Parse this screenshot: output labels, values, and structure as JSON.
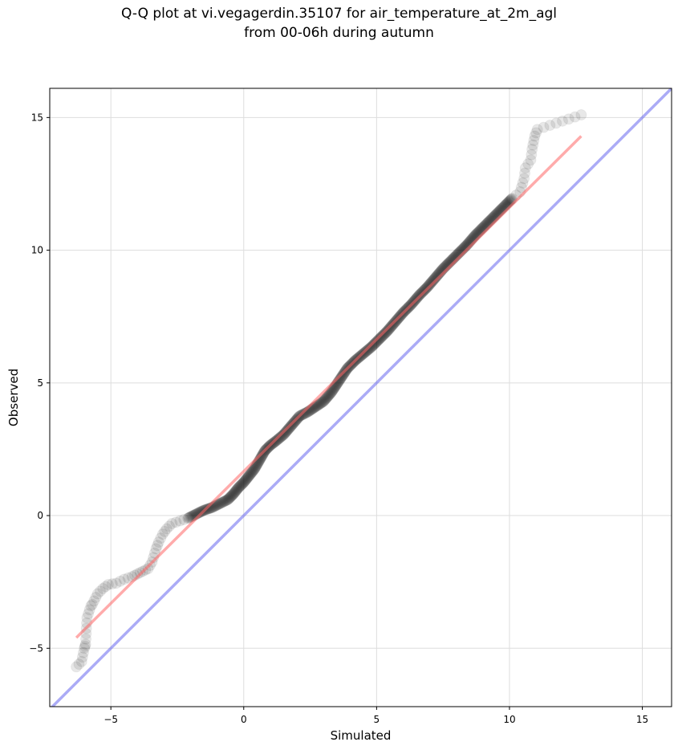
{
  "title_lines": [
    "Q-Q plot at vi.vegagerdin.35107 for air_temperature_at_2m_agl",
    "from 00-06h during autumn"
  ],
  "chart_data": {
    "type": "scatter",
    "xlabel": "Simulated",
    "ylabel": "Observed",
    "xlim": [
      -7.3,
      16.1
    ],
    "ylim": [
      -7.2,
      16.1
    ],
    "xticks": [
      -5,
      0,
      5,
      10,
      15
    ],
    "yticks": [
      -5,
      0,
      5,
      10,
      15
    ],
    "xtick_labels": [
      "−5",
      "0",
      "5",
      "10",
      "15"
    ],
    "ytick_labels": [
      "−5",
      "0",
      "5",
      "10",
      "15"
    ],
    "grid": true,
    "colors": {
      "points": "#000000",
      "fit_line": "#ff6666",
      "identity_line": "#6666ee",
      "grid": "#dddddd"
    },
    "fit_line": {
      "x": [
        -6.3,
        12.7
      ],
      "y": [
        -4.6,
        14.3
      ]
    },
    "identity_line": {
      "x": [
        -7.3,
        16.1
      ],
      "y": [
        -7.3,
        16.1
      ]
    },
    "quantiles": [
      [
        -6.3,
        -5.7
      ],
      [
        -6.1,
        -5.5
      ],
      [
        -6.0,
        -5.0
      ],
      [
        -5.95,
        -4.85
      ],
      [
        -5.9,
        -3.85
      ],
      [
        -5.75,
        -3.4
      ],
      [
        -5.7,
        -3.35
      ],
      [
        -5.5,
        -2.95
      ],
      [
        -5.3,
        -2.75
      ],
      [
        -5.1,
        -2.6
      ],
      [
        -4.8,
        -2.55
      ],
      [
        -4.5,
        -2.4
      ],
      [
        -4.2,
        -2.3
      ],
      [
        -4.0,
        -2.2
      ],
      [
        -3.8,
        -2.1
      ],
      [
        -3.6,
        -2.0
      ],
      [
        -3.45,
        -1.75
      ],
      [
        -3.3,
        -1.25
      ],
      [
        -3.2,
        -1.0
      ],
      [
        -3.05,
        -0.7
      ],
      [
        -2.9,
        -0.5
      ],
      [
        -2.7,
        -0.3
      ],
      [
        -2.4,
        -0.2
      ],
      [
        -2.1,
        -0.1
      ],
      [
        -1.8,
        0.05
      ],
      [
        -1.5,
        0.2
      ],
      [
        -1.2,
        0.3
      ],
      [
        -0.9,
        0.45
      ],
      [
        -0.6,
        0.6
      ],
      [
        -0.4,
        0.8
      ],
      [
        -0.2,
        1.05
      ],
      [
        0.0,
        1.25
      ],
      [
        0.2,
        1.5
      ],
      [
        0.4,
        1.75
      ],
      [
        0.6,
        2.1
      ],
      [
        0.8,
        2.45
      ],
      [
        1.0,
        2.65
      ],
      [
        1.2,
        2.8
      ],
      [
        1.5,
        3.05
      ],
      [
        1.8,
        3.4
      ],
      [
        2.1,
        3.75
      ],
      [
        2.4,
        3.9
      ],
      [
        2.7,
        4.1
      ],
      [
        3.0,
        4.3
      ],
      [
        3.3,
        4.65
      ],
      [
        3.6,
        5.1
      ],
      [
        3.9,
        5.55
      ],
      [
        4.2,
        5.85
      ],
      [
        4.5,
        6.1
      ],
      [
        4.8,
        6.35
      ],
      [
        5.1,
        6.65
      ],
      [
        5.4,
        6.95
      ],
      [
        5.7,
        7.3
      ],
      [
        6.0,
        7.65
      ],
      [
        6.3,
        7.95
      ],
      [
        6.6,
        8.3
      ],
      [
        6.9,
        8.6
      ],
      [
        7.2,
        8.95
      ],
      [
        7.5,
        9.3
      ],
      [
        7.8,
        9.6
      ],
      [
        8.1,
        9.9
      ],
      [
        8.4,
        10.2
      ],
      [
        8.7,
        10.55
      ],
      [
        9.0,
        10.85
      ],
      [
        9.3,
        11.15
      ],
      [
        9.6,
        11.45
      ],
      [
        9.9,
        11.75
      ],
      [
        10.1,
        11.95
      ],
      [
        10.4,
        12.2
      ],
      [
        10.55,
        12.7
      ],
      [
        10.6,
        13.1
      ],
      [
        10.8,
        13.4
      ],
      [
        10.85,
        13.8
      ],
      [
        10.95,
        14.3
      ],
      [
        11.05,
        14.55
      ],
      [
        12.7,
        15.1
      ]
    ]
  }
}
